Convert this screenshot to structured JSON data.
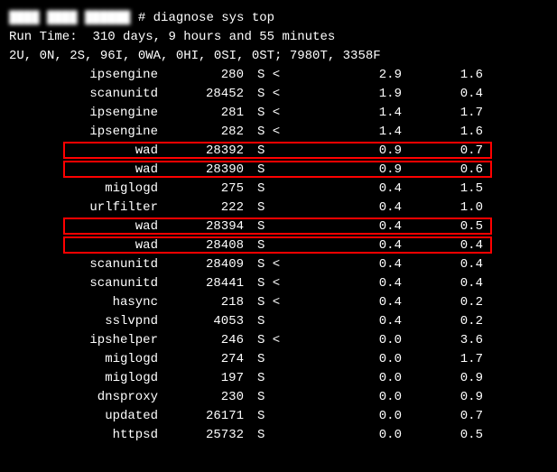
{
  "prompt_host": "████ ████ ██████",
  "prompt_symbol": "#",
  "command": "diagnose sys top",
  "runtime_label": "Run Time:",
  "runtime_value": "310 days, 9 hours and 55 minutes",
  "stats_line": "2U, 0N, 2S, 96I, 0WA, 0HI, 0SI, 0ST; 7980T, 3358F",
  "highlight_color": "#ff0000",
  "rows": [
    {
      "name": "ipsengine",
      "pid": "280",
      "state": "S <",
      "cpu": "2.9",
      "mem": "1.6",
      "highlight": false
    },
    {
      "name": "scanunitd",
      "pid": "28452",
      "state": "S <",
      "cpu": "1.9",
      "mem": "0.4",
      "highlight": false
    },
    {
      "name": "ipsengine",
      "pid": "281",
      "state": "S <",
      "cpu": "1.4",
      "mem": "1.7",
      "highlight": false
    },
    {
      "name": "ipsengine",
      "pid": "282",
      "state": "S <",
      "cpu": "1.4",
      "mem": "1.6",
      "highlight": false
    },
    {
      "name": "wad",
      "pid": "28392",
      "state": "S",
      "cpu": "0.9",
      "mem": "0.7",
      "highlight": true
    },
    {
      "name": "wad",
      "pid": "28390",
      "state": "S",
      "cpu": "0.9",
      "mem": "0.6",
      "highlight": true
    },
    {
      "name": "miglogd",
      "pid": "275",
      "state": "S",
      "cpu": "0.4",
      "mem": "1.5",
      "highlight": false
    },
    {
      "name": "urlfilter",
      "pid": "222",
      "state": "S",
      "cpu": "0.4",
      "mem": "1.0",
      "highlight": false
    },
    {
      "name": "wad",
      "pid": "28394",
      "state": "S",
      "cpu": "0.4",
      "mem": "0.5",
      "highlight": true
    },
    {
      "name": "wad",
      "pid": "28408",
      "state": "S",
      "cpu": "0.4",
      "mem": "0.4",
      "highlight": true
    },
    {
      "name": "scanunitd",
      "pid": "28409",
      "state": "S <",
      "cpu": "0.4",
      "mem": "0.4",
      "highlight": false
    },
    {
      "name": "scanunitd",
      "pid": "28441",
      "state": "S <",
      "cpu": "0.4",
      "mem": "0.4",
      "highlight": false
    },
    {
      "name": "hasync",
      "pid": "218",
      "state": "S <",
      "cpu": "0.4",
      "mem": "0.2",
      "highlight": false
    },
    {
      "name": "sslvpnd",
      "pid": "4053",
      "state": "S",
      "cpu": "0.4",
      "mem": "0.2",
      "highlight": false
    },
    {
      "name": "ipshelper",
      "pid": "246",
      "state": "S <",
      "cpu": "0.0",
      "mem": "3.6",
      "highlight": false
    },
    {
      "name": "miglogd",
      "pid": "274",
      "state": "S",
      "cpu": "0.0",
      "mem": "1.7",
      "highlight": false
    },
    {
      "name": "miglogd",
      "pid": "197",
      "state": "S",
      "cpu": "0.0",
      "mem": "0.9",
      "highlight": false
    },
    {
      "name": "dnsproxy",
      "pid": "230",
      "state": "S",
      "cpu": "0.0",
      "mem": "0.9",
      "highlight": false
    },
    {
      "name": "updated",
      "pid": "26171",
      "state": "S",
      "cpu": "0.0",
      "mem": "0.7",
      "highlight": false
    },
    {
      "name": "httpsd",
      "pid": "25732",
      "state": "S",
      "cpu": "0.0",
      "mem": "0.5",
      "highlight": false
    }
  ]
}
